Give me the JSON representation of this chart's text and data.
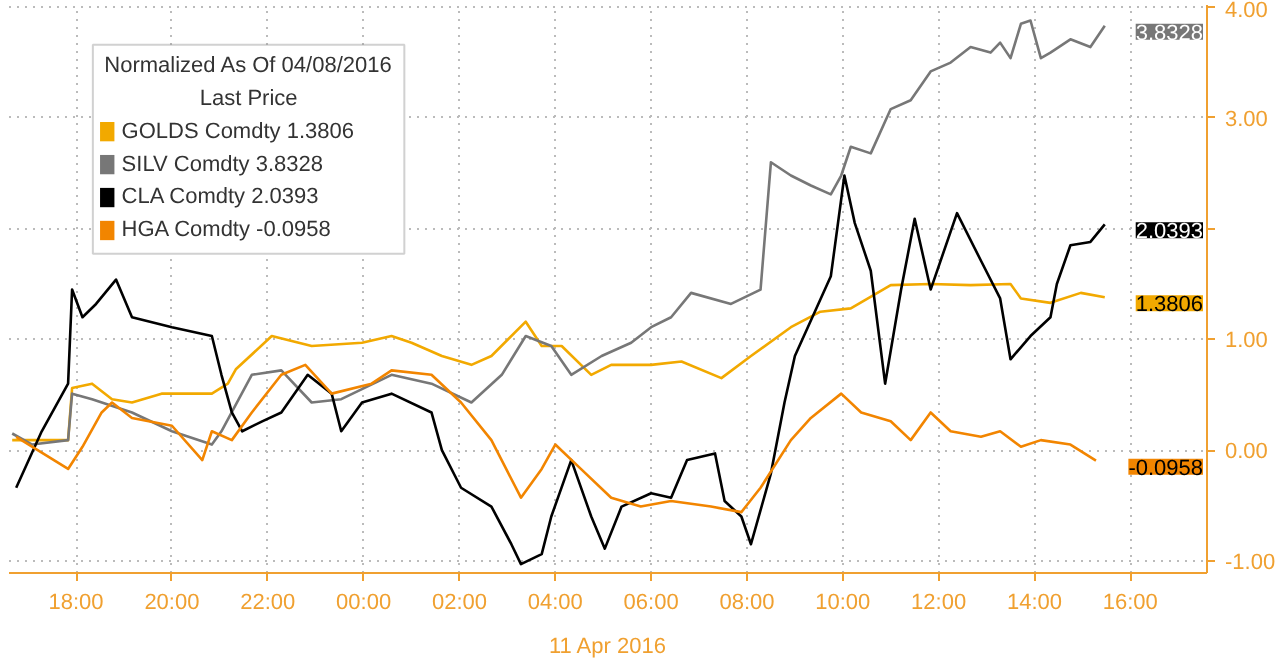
{
  "chart_data": {
    "type": "line",
    "legend_title": "Normalized As Of 04/08/2016",
    "subtitle": "Last Price",
    "annotations": [
      "11 Apr 2016"
    ],
    "xlim": [
      "2016-04-10T16:36",
      "2016-04-11T17:36"
    ],
    "xticks": [
      {
        "value": "2016-04-10T18:00",
        "label": "18:00"
      },
      {
        "value": "2016-04-10T20:00",
        "label": "20:00"
      },
      {
        "value": "2016-04-10T22:00",
        "label": "22:00"
      },
      {
        "value": "2016-04-11T00:00",
        "label": "00:00"
      },
      {
        "value": "2016-04-11T02:00",
        "label": "02:00"
      },
      {
        "value": "2016-04-11T04:00",
        "label": "04:00"
      },
      {
        "value": "2016-04-11T06:00",
        "label": "06:00"
      },
      {
        "value": "2016-04-11T08:00",
        "label": "08:00"
      },
      {
        "value": "2016-04-11T10:00",
        "label": "10:00"
      },
      {
        "value": "2016-04-11T12:00",
        "label": "12:00"
      },
      {
        "value": "2016-04-11T14:00",
        "label": "14:00"
      },
      {
        "value": "2016-04-11T16:00",
        "label": "16:00"
      }
    ],
    "ylim": [
      -1.11,
      4.02
    ],
    "yticks": [
      {
        "value": -1,
        "label": "-1.00"
      },
      {
        "value": 0,
        "label": "0.00"
      },
      {
        "value": 1,
        "label": "1.00"
      },
      {
        "value": 2,
        "label": null
      },
      {
        "value": 3,
        "label": "3.00"
      },
      {
        "value": 4,
        "label": "4.00"
      }
    ],
    "grid": true,
    "legend": "top left",
    "line_style": "solid",
    "series": [
      {
        "name": "GOLDS Comdty 1.3806",
        "color": "#f2a900",
        "x": [
          "2016-04-10T16:40",
          "2016-04-10T17:50",
          "2016-04-10T17:55",
          "2016-04-10T18:20",
          "2016-04-10T18:45",
          "2016-04-10T19:10",
          "2016-04-10T19:47",
          "2016-04-10T20:50",
          "2016-04-10T21:10",
          "2016-04-10T21:20",
          "2016-04-10T22:05",
          "2016-04-10T22:55",
          "2016-04-10T23:58",
          "2016-04-11T00:35",
          "2016-04-11T01:00",
          "2016-04-11T01:38",
          "2016-04-11T02:15",
          "2016-04-11T02:40",
          "2016-04-11T03:23",
          "2016-04-11T03:43",
          "2016-04-11T04:08",
          "2016-04-11T04:45",
          "2016-04-11T05:10",
          "2016-04-11T06:00",
          "2016-04-11T06:38",
          "2016-04-11T07:28",
          "2016-04-11T08:05",
          "2016-04-11T08:55",
          "2016-04-11T09:32",
          "2016-04-11T10:10",
          "2016-04-11T11:00",
          "2016-04-11T11:50",
          "2016-04-11T12:40",
          "2016-04-11T13:30",
          "2016-04-11T13:43",
          "2016-04-11T14:20",
          "2016-04-11T14:58",
          "2016-04-11T15:28"
        ],
        "values": [
          0.09,
          0.09,
          0.56,
          0.6,
          0.46,
          0.43,
          0.51,
          0.51,
          0.6,
          0.73,
          1.03,
          0.94,
          0.97,
          1.03,
          0.97,
          0.85,
          0.77,
          0.85,
          1.16,
          0.94,
          0.94,
          0.68,
          0.77,
          0.77,
          0.8,
          0.65,
          0.85,
          1.11,
          1.25,
          1.28,
          1.49,
          1.5,
          1.49,
          1.5,
          1.37,
          1.33,
          1.42,
          1.3806
        ],
        "value_labels": [
          null,
          null,
          null,
          null,
          null,
          null,
          null,
          null,
          null,
          null,
          null,
          null,
          null,
          null,
          null,
          null,
          null,
          null,
          null,
          null,
          null,
          null,
          null,
          null,
          null,
          null,
          null,
          null,
          null,
          null,
          null,
          null,
          null,
          null,
          null,
          null,
          null,
          "1.3806"
        ]
      },
      {
        "name": "SILV Comdty 3.8328",
        "color": "#777777",
        "x": [
          "2016-04-10T16:40",
          "2016-04-10T17:05",
          "2016-04-10T17:50",
          "2016-04-10T17:55",
          "2016-04-10T18:20",
          "2016-04-10T19:10",
          "2016-04-10T20:00",
          "2016-04-10T20:50",
          "2016-04-10T21:02",
          "2016-04-10T21:40",
          "2016-04-10T22:17",
          "2016-04-10T22:55",
          "2016-04-10T23:32",
          "2016-04-11T00:35",
          "2016-04-11T01:25",
          "2016-04-11T02:15",
          "2016-04-11T02:53",
          "2016-04-11T03:23",
          "2016-04-11T03:55",
          "2016-04-11T04:20",
          "2016-04-11T04:58",
          "2016-04-11T05:35",
          "2016-04-11T06:00",
          "2016-04-11T06:25",
          "2016-04-11T06:50",
          "2016-04-11T07:40",
          "2016-04-11T08:17",
          "2016-04-11T08:30",
          "2016-04-11T08:55",
          "2016-04-11T09:20",
          "2016-04-11T09:45",
          "2016-04-11T09:58",
          "2016-04-11T10:10",
          "2016-04-11T10:35",
          "2016-04-11T11:00",
          "2016-04-11T11:25",
          "2016-04-11T11:50",
          "2016-04-11T12:15",
          "2016-04-11T12:40",
          "2016-04-11T13:05",
          "2016-04-11T13:17",
          "2016-04-11T13:30",
          "2016-04-11T13:43",
          "2016-04-11T13:55",
          "2016-04-11T14:08",
          "2016-04-11T14:20",
          "2016-04-11T14:45",
          "2016-04-11T15:10",
          "2016-04-11T15:28"
        ],
        "values": [
          0.15,
          0.05,
          0.09,
          0.51,
          0.46,
          0.34,
          0.17,
          0.05,
          0.17,
          0.68,
          0.72,
          0.43,
          0.46,
          0.68,
          0.6,
          0.43,
          0.68,
          1.03,
          0.94,
          0.68,
          0.85,
          0.97,
          1.11,
          1.2,
          1.42,
          1.32,
          1.45,
          2.6,
          2.48,
          2.39,
          2.31,
          2.48,
          2.74,
          2.68,
          3.08,
          3.16,
          3.42,
          3.5,
          3.64,
          3.59,
          3.68,
          3.54,
          3.85,
          3.88,
          3.54,
          3.59,
          3.71,
          3.64,
          3.8328
        ],
        "value_labels": [
          null,
          null,
          null,
          null,
          null,
          null,
          null,
          null,
          null,
          null,
          null,
          null,
          null,
          null,
          null,
          null,
          null,
          null,
          null,
          null,
          null,
          null,
          null,
          null,
          null,
          null,
          null,
          null,
          null,
          null,
          null,
          null,
          null,
          null,
          null,
          null,
          null,
          null,
          null,
          null,
          null,
          null,
          null,
          null,
          null,
          null,
          null,
          null,
          "3.8328"
        ]
      },
      {
        "name": "CLA Comdty 2.0393",
        "color": "#000000",
        "x": [
          "2016-04-10T16:45",
          "2016-04-10T17:17",
          "2016-04-10T17:50",
          "2016-04-10T17:55",
          "2016-04-10T18:08",
          "2016-04-10T18:25",
          "2016-04-10T18:50",
          "2016-04-10T19:10",
          "2016-04-10T20:00",
          "2016-04-10T20:50",
          "2016-04-10T21:02",
          "2016-04-10T21:15",
          "2016-04-10T21:28",
          "2016-04-10T21:53",
          "2016-04-10T22:17",
          "2016-04-10T22:50",
          "2016-04-10T23:20",
          "2016-04-10T23:32",
          "2016-04-10T23:58",
          "2016-04-11T00:35",
          "2016-04-11T01:25",
          "2016-04-11T01:38",
          "2016-04-11T02:02",
          "2016-04-11T02:40",
          "2016-04-11T03:05",
          "2016-04-11T03:17",
          "2016-04-11T03:43",
          "2016-04-11T03:55",
          "2016-04-11T04:20",
          "2016-04-11T04:45",
          "2016-04-11T05:02",
          "2016-04-11T05:23",
          "2016-04-11T06:00",
          "2016-04-11T06:25",
          "2016-04-11T06:45",
          "2016-04-11T07:20",
          "2016-04-11T07:32",
          "2016-04-11T07:53",
          "2016-04-11T08:05",
          "2016-04-11T08:30",
          "2016-04-11T08:47",
          "2016-04-11T09:00",
          "2016-04-11T09:45",
          "2016-04-11T10:02",
          "2016-04-11T10:15",
          "2016-04-11T10:35",
          "2016-04-11T10:53",
          "2016-04-11T11:13",
          "2016-04-11T11:30",
          "2016-04-11T11:50",
          "2016-04-11T12:23",
          "2016-04-11T12:53",
          "2016-04-11T13:17",
          "2016-04-11T13:30",
          "2016-04-11T13:55",
          "2016-04-11T14:20",
          "2016-04-11T14:28",
          "2016-04-11T14:45",
          "2016-04-11T15:10",
          "2016-04-11T15:28"
        ],
        "values": [
          -0.34,
          0.17,
          0.6,
          1.45,
          1.2,
          1.32,
          1.54,
          1.2,
          1.11,
          1.03,
          0.68,
          0.34,
          0.17,
          0.26,
          0.34,
          0.68,
          0.51,
          0.17,
          0.43,
          0.51,
          0.34,
          0.0,
          -0.34,
          -0.51,
          -0.85,
          -1.03,
          -0.94,
          -0.6,
          -0.09,
          -0.6,
          -0.89,
          -0.51,
          -0.39,
          -0.43,
          -0.09,
          -0.03,
          -0.46,
          -0.6,
          -0.85,
          -0.21,
          0.43,
          0.85,
          1.57,
          2.48,
          2.05,
          1.62,
          0.6,
          1.45,
          2.09,
          1.45,
          2.14,
          1.71,
          1.37,
          0.82,
          1.03,
          1.2,
          1.5,
          1.85,
          1.88,
          2.0393
        ],
        "value_labels": [
          null,
          null,
          null,
          null,
          null,
          null,
          null,
          null,
          null,
          null,
          null,
          null,
          null,
          null,
          null,
          null,
          null,
          null,
          null,
          null,
          null,
          null,
          null,
          null,
          null,
          null,
          null,
          null,
          null,
          null,
          null,
          null,
          null,
          null,
          null,
          null,
          null,
          null,
          null,
          null,
          null,
          null,
          null,
          null,
          null,
          null,
          null,
          null,
          null,
          null,
          null,
          null,
          null,
          null,
          null,
          null,
          null,
          null,
          null,
          "2.0393"
        ]
      },
      {
        "name": "HGA Comdty -0.0958",
        "color": "#f28500",
        "x": [
          "2016-04-10T16:45",
          "2016-04-10T17:50",
          "2016-04-10T18:08",
          "2016-04-10T18:32",
          "2016-04-10T18:45",
          "2016-04-10T19:10",
          "2016-04-10T20:00",
          "2016-04-10T20:38",
          "2016-04-10T20:50",
          "2016-04-10T21:15",
          "2016-04-10T21:40",
          "2016-04-10T22:17",
          "2016-04-10T22:47",
          "2016-04-10T23:20",
          "2016-04-11T00:10",
          "2016-04-11T00:35",
          "2016-04-11T01:25",
          "2016-04-11T02:02",
          "2016-04-11T02:40",
          "2016-04-11T03:17",
          "2016-04-11T03:43",
          "2016-04-11T04:00",
          "2016-04-11T04:32",
          "2016-04-11T05:10",
          "2016-04-11T05:47",
          "2016-04-11T06:25",
          "2016-04-11T07:15",
          "2016-04-11T07:53",
          "2016-04-11T08:17",
          "2016-04-11T08:55",
          "2016-04-11T09:20",
          "2016-04-11T09:58",
          "2016-04-11T10:23",
          "2016-04-11T11:00",
          "2016-04-11T11:25",
          "2016-04-11T11:50",
          "2016-04-11T12:15",
          "2016-04-11T12:53",
          "2016-04-11T13:17",
          "2016-04-11T13:43",
          "2016-04-11T14:08",
          "2016-04-11T14:45",
          "2016-04-11T15:17"
        ],
        "values": [
          0.12,
          -0.17,
          0.03,
          0.34,
          0.43,
          0.29,
          0.22,
          -0.09,
          0.17,
          0.09,
          0.34,
          0.68,
          0.77,
          0.51,
          0.6,
          0.72,
          0.68,
          0.43,
          0.09,
          -0.43,
          -0.17,
          0.05,
          -0.17,
          -0.43,
          -0.51,
          -0.46,
          -0.51,
          -0.56,
          -0.34,
          0.09,
          0.29,
          0.51,
          0.34,
          0.26,
          0.09,
          0.34,
          0.17,
          0.12,
          0.17,
          0.03,
          0.09,
          0.05,
          -0.0958
        ],
        "value_labels": [
          null,
          null,
          null,
          null,
          null,
          null,
          null,
          null,
          null,
          null,
          null,
          null,
          null,
          null,
          null,
          null,
          null,
          null,
          null,
          null,
          null,
          null,
          null,
          null,
          null,
          null,
          null,
          null,
          null,
          null,
          null,
          null,
          null,
          null,
          null,
          null,
          null,
          null,
          null,
          null,
          null,
          null,
          "-0.0958"
        ]
      }
    ]
  }
}
